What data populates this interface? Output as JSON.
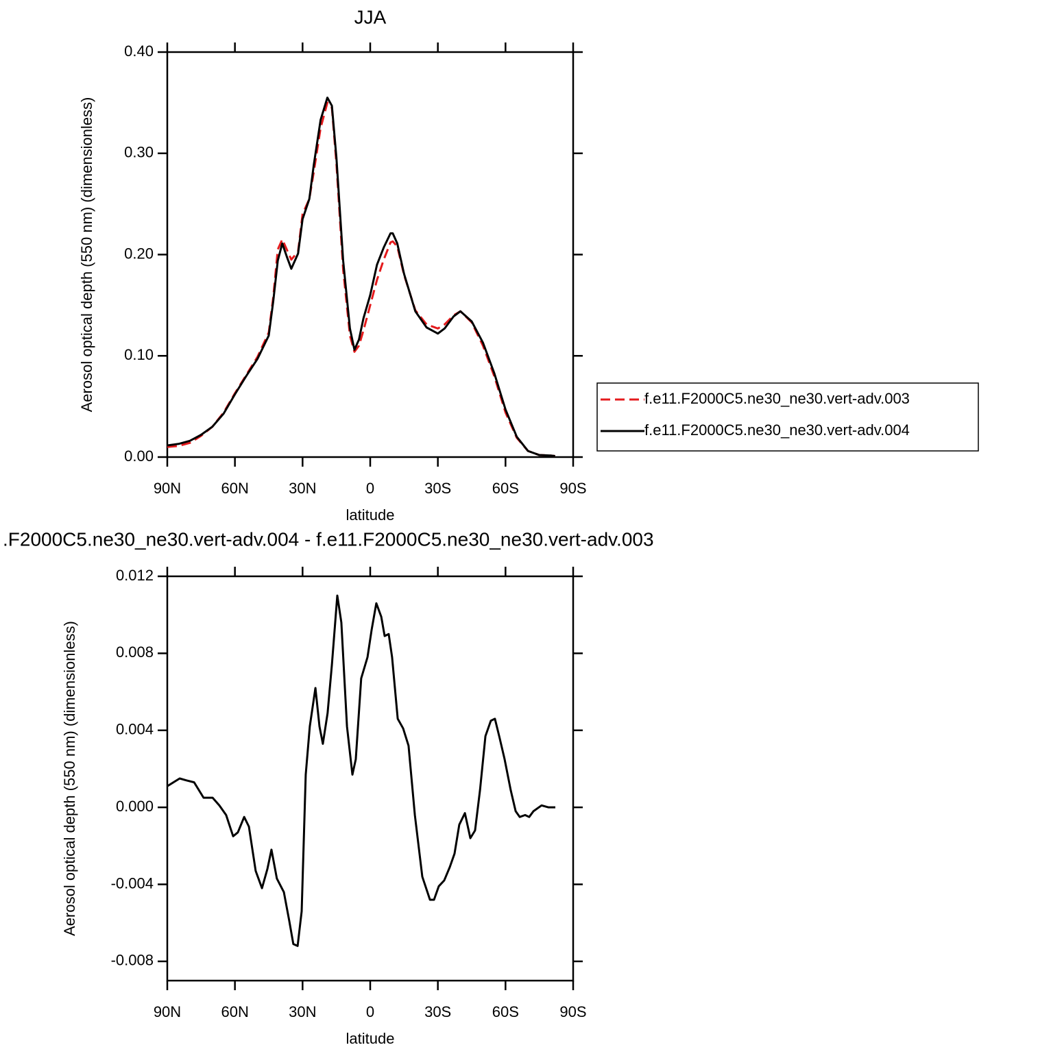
{
  "chart_data": [
    {
      "type": "line",
      "title": "JJA",
      "x_label": "latitude",
      "y_label": "Aerosol optical depth (550 nm) (dimensionless)",
      "x": [
        90,
        85,
        80,
        75,
        70,
        65,
        60,
        55,
        50,
        45,
        43,
        41,
        39,
        37,
        35,
        32,
        30,
        27,
        25,
        22,
        19,
        17,
        15,
        12,
        9,
        7,
        5,
        3,
        0,
        -3,
        -6,
        -9,
        -10,
        -12,
        -15,
        -20,
        -25,
        -30,
        -33,
        -37,
        -40,
        -45,
        -50,
        -55,
        -60,
        -65,
        -70,
        -75,
        -80,
        -82
      ],
      "series": [
        {
          "name": "f.e11.F2000C5.ne30_ne30.vert-adv.003",
          "color": "#e41a1c",
          "dashed": true,
          "values": [
            0.01,
            0.011,
            0.014,
            0.021,
            0.03,
            0.044,
            0.063,
            0.081,
            0.099,
            0.123,
            0.158,
            0.205,
            0.215,
            0.205,
            0.195,
            0.203,
            0.24,
            0.255,
            0.282,
            0.325,
            0.35,
            0.345,
            0.29,
            0.185,
            0.12,
            0.104,
            0.11,
            0.125,
            0.15,
            0.175,
            0.195,
            0.212,
            0.213,
            0.208,
            0.18,
            0.145,
            0.131,
            0.127,
            0.131,
            0.14,
            0.144,
            0.133,
            0.11,
            0.08,
            0.044,
            0.019,
            0.006,
            0.002,
            0.0015,
            0.001
          ]
        },
        {
          "name": "f.e11.F2000C5.ne30_ne30.vert-adv.004",
          "color": "#000000",
          "dashed": false,
          "values": [
            0.0115,
            0.013,
            0.016,
            0.022,
            0.03,
            0.043,
            0.062,
            0.08,
            0.097,
            0.12,
            0.154,
            0.194,
            0.211,
            0.198,
            0.186,
            0.201,
            0.235,
            0.255,
            0.289,
            0.333,
            0.355,
            0.347,
            0.296,
            0.194,
            0.127,
            0.106,
            0.116,
            0.137,
            0.16,
            0.19,
            0.207,
            0.221,
            0.221,
            0.211,
            0.181,
            0.144,
            0.128,
            0.122,
            0.127,
            0.139,
            0.144,
            0.134,
            0.113,
            0.083,
            0.047,
            0.02,
            0.006,
            0.002,
            0.0015,
            0.001
          ]
        }
      ],
      "xlim": [
        90,
        -90
      ],
      "xticks": [
        {
          "value": 90,
          "label": "90N"
        },
        {
          "value": 60,
          "label": "60N"
        },
        {
          "value": 30,
          "label": "30N"
        },
        0,
        {
          "value": -30,
          "label": "30S"
        },
        {
          "value": -60,
          "label": "60S"
        },
        {
          "value": -90,
          "label": "90S"
        }
      ],
      "ylim": [
        0,
        0.4
      ],
      "yticks": [
        {
          "value": 0,
          "label": "0.00"
        },
        {
          "value": 0.1,
          "label": "0.10"
        },
        {
          "value": 0.2,
          "label": "0.20"
        },
        {
          "value": 0.3,
          "label": "0.30"
        },
        {
          "value": 0.4,
          "label": "0.40"
        }
      ],
      "legend": "right"
    },
    {
      "type": "line",
      "title": ".F2000C5.ne30_ne30.vert-adv.004 - f.e11.F2000C5.ne30_ne30.vert-adv.003",
      "x_label": "latitude",
      "y_label": "Aerosol optical depth (550 nm) (dimensionless)",
      "x": [
        90,
        84.5,
        81.5,
        78.1,
        76,
        73.9,
        69.9,
        66.9,
        63.9,
        60.8,
        58.7,
        55.9,
        53.8,
        50.8,
        48,
        45.6,
        43.8,
        41.4,
        38.3,
        35.9,
        34.1,
        32.2,
        30.4,
        28.6,
        26.8,
        24.3,
        22.5,
        21,
        18.9,
        17,
        14.6,
        12.8,
        10.3,
        7.9,
        6.4,
        4,
        1.2,
        -0.6,
        -2.7,
        -4.9,
        -6.4,
        -8.2,
        -9.7,
        -12.2,
        -14.6,
        -17,
        -19.8,
        -23.1,
        -26.5,
        -28.3,
        -30.4,
        -32.8,
        -35.3,
        -37.4,
        -39.5,
        -42,
        -44.4,
        -46.5,
        -48.7,
        -51.1,
        -53.5,
        -55.3,
        -57.2,
        -59.6,
        -62.3,
        -64.5,
        -66.3,
        -68.7,
        -70.5,
        -72.4,
        -76,
        -79.1,
        -82.1
      ],
      "values": [
        0.0011,
        0.0015,
        0.0014,
        0.0013,
        0.0009,
        0.0005,
        0.0005,
        0.0001,
        -0.0004,
        -0.0015,
        -0.0013,
        -0.0005,
        -0.001,
        -0.0033,
        -0.0042,
        -0.0032,
        -0.0022,
        -0.0037,
        -0.0044,
        -0.0059,
        -0.0071,
        -0.0072,
        -0.0054,
        0.0017,
        0.0042,
        0.0062,
        0.0042,
        0.0033,
        0.0049,
        0.0074,
        0.011,
        0.0096,
        0.0042,
        0.0017,
        0.0025,
        0.0067,
        0.0078,
        0.0092,
        0.0106,
        0.0099,
        0.0089,
        0.009,
        0.0078,
        0.0046,
        0.0041,
        0.0032,
        -0.0004,
        -0.0036,
        -0.0048,
        -0.0048,
        -0.0041,
        -0.0038,
        -0.0031,
        -0.0024,
        -0.0009,
        -0.0003,
        -0.0016,
        -0.0012,
        0.0009,
        0.0037,
        0.0045,
        0.0046,
        0.0037,
        0.0025,
        0.0009,
        -0.0002,
        -0.0005,
        -0.0004,
        -0.0005,
        -0.0002,
        0.0001,
        0,
        0
      ],
      "color": "#000000",
      "xlim": [
        90,
        -90
      ],
      "xticks": [
        {
          "value": 90,
          "label": "90N"
        },
        {
          "value": 60,
          "label": "60N"
        },
        {
          "value": 30,
          "label": "30N"
        },
        0,
        {
          "value": -30,
          "label": "30S"
        },
        {
          "value": -60,
          "label": "60S"
        },
        {
          "value": -90,
          "label": "90S"
        }
      ],
      "ylim": [
        -0.009,
        0.012
      ],
      "yticks": [
        -0.008,
        -0.004,
        {
          "value": 0,
          "label": "0.000"
        },
        0.004,
        0.008,
        0.012
      ]
    }
  ]
}
